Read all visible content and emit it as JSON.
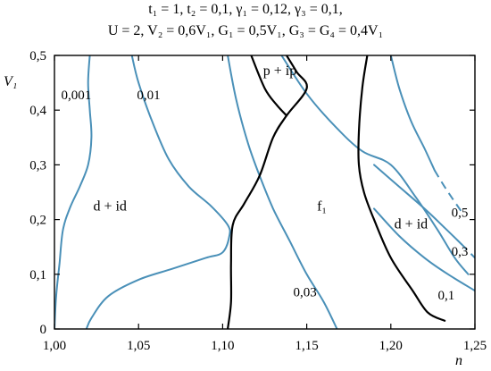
{
  "header": {
    "line1": "t₁ = 1, t₂ = 0,1,  γ₁ = 0,12,  γ₃ = 0,1,",
    "line2": "U = 2,  V₂ = 0,6V₁,  G₁ = 0,5V₁, G₃ = G₄ = 0,4V₁"
  },
  "chart_data": {
    "type": "line",
    "title": "",
    "xlabel": "n",
    "ylabel": "V₁",
    "xlim": [
      1.0,
      1.25
    ],
    "ylim": [
      0.0,
      0.5
    ],
    "x_ticks": [
      "1,00",
      "1,05",
      "1,10",
      "1,15",
      "1,20",
      "1,25"
    ],
    "y_ticks": [
      "0",
      "0,1",
      "0,2",
      "0,3",
      "0,4",
      "0,5"
    ],
    "x_tick_values": [
      1.0,
      1.05,
      1.1,
      1.15,
      1.2,
      1.25
    ],
    "y_tick_values": [
      0,
      0.1,
      0.2,
      0.3,
      0.4,
      0.5
    ],
    "grid": false,
    "colors": {
      "contour": "#4a90b8",
      "boundary": "#000000",
      "axis": "#000000"
    },
    "regions": [
      {
        "label": "d + id",
        "x": 1.033,
        "y": 0.225
      },
      {
        "label": "f₁",
        "x": 1.159,
        "y": 0.225
      },
      {
        "label": "d + id",
        "x": 1.212,
        "y": 0.192
      },
      {
        "label": "p + ip",
        "x": 1.134,
        "y": 0.472
      }
    ],
    "series": [
      {
        "name": "0,001",
        "color": "contour",
        "label_at": [
          1.004,
          0.428
        ],
        "points": [
          [
            1.021,
            0.5
          ],
          [
            1.02,
            0.45
          ],
          [
            1.021,
            0.4
          ],
          [
            1.022,
            0.35
          ],
          [
            1.02,
            0.3
          ],
          [
            1.015,
            0.26
          ],
          [
            1.009,
            0.22
          ],
          [
            1.005,
            0.18
          ],
          [
            1.003,
            0.12
          ],
          [
            1.001,
            0.06
          ],
          [
            1.0,
            0.0
          ]
        ]
      },
      {
        "name": "0,01",
        "color": "contour",
        "label_at": [
          1.049,
          0.428
        ],
        "points": [
          [
            1.046,
            0.5
          ],
          [
            1.05,
            0.45
          ],
          [
            1.058,
            0.38
          ],
          [
            1.068,
            0.31
          ],
          [
            1.08,
            0.26
          ],
          [
            1.093,
            0.225
          ],
          [
            1.103,
            0.19
          ],
          [
            1.104,
            0.17
          ],
          [
            1.1,
            0.14
          ],
          [
            1.09,
            0.13
          ],
          [
            1.07,
            0.11
          ],
          [
            1.05,
            0.09
          ],
          [
            1.032,
            0.06
          ],
          [
            1.022,
            0.02
          ],
          [
            1.019,
            0.0
          ]
        ]
      },
      {
        "name": "",
        "color": "contour",
        "points": [
          [
            1.103,
            0.5
          ],
          [
            1.108,
            0.42
          ],
          [
            1.115,
            0.34
          ],
          [
            1.122,
            0.28
          ],
          [
            1.13,
            0.22
          ],
          [
            1.14,
            0.16
          ],
          [
            1.15,
            0.1
          ],
          [
            1.16,
            0.05
          ],
          [
            1.168,
            0.0
          ]
        ]
      },
      {
        "name": "0,03",
        "color": "contour",
        "label_at": [
          1.142,
          0.068
        ],
        "points": [
          [
            1.135,
            0.5
          ],
          [
            1.15,
            0.43
          ],
          [
            1.167,
            0.37
          ],
          [
            1.183,
            0.325
          ],
          [
            1.2,
            0.3
          ],
          [
            1.215,
            0.24
          ],
          [
            1.228,
            0.18
          ],
          [
            1.238,
            0.13
          ],
          [
            1.246,
            0.1
          ]
        ]
      },
      {
        "name": "0,5",
        "color": "contour",
        "label_at": [
          1.236,
          0.213
        ],
        "dashed_from": 1.226,
        "points": [
          [
            1.2,
            0.5
          ],
          [
            1.205,
            0.44
          ],
          [
            1.212,
            0.38
          ],
          [
            1.22,
            0.33
          ],
          [
            1.226,
            0.29
          ],
          [
            1.233,
            0.255
          ],
          [
            1.243,
            0.21
          ]
        ]
      },
      {
        "name": "0,3",
        "color": "contour",
        "label_at": [
          1.236,
          0.142
        ],
        "dashed_from": 1.237,
        "points": [
          [
            1.19,
            0.3
          ],
          [
            1.205,
            0.26
          ],
          [
            1.22,
            0.22
          ],
          [
            1.232,
            0.185
          ],
          [
            1.242,
            0.155
          ],
          [
            1.25,
            0.13
          ]
        ]
      },
      {
        "name": "0,1",
        "color": "contour",
        "label_at": [
          1.228,
          0.062
        ],
        "points": [
          [
            1.19,
            0.22
          ],
          [
            1.205,
            0.17
          ],
          [
            1.22,
            0.13
          ],
          [
            1.234,
            0.1
          ],
          [
            1.25,
            0.07
          ]
        ]
      },
      {
        "name": "",
        "color": "boundary",
        "points": [
          [
            1.138,
            0.5
          ],
          [
            1.144,
            0.47
          ],
          [
            1.15,
            0.44
          ],
          [
            1.138,
            0.39
          ],
          [
            1.13,
            0.35
          ],
          [
            1.122,
            0.28
          ],
          [
            1.113,
            0.23
          ],
          [
            1.106,
            0.19
          ],
          [
            1.105,
            0.12
          ],
          [
            1.105,
            0.05
          ],
          [
            1.103,
            0.0
          ]
        ]
      },
      {
        "name": "",
        "color": "boundary",
        "points": [
          [
            1.117,
            0.5
          ],
          [
            1.125,
            0.44
          ],
          [
            1.132,
            0.41
          ],
          [
            1.138,
            0.39
          ]
        ]
      },
      {
        "name": "",
        "color": "boundary",
        "dashed_from": 1.225,
        "points": [
          [
            1.186,
            0.5
          ],
          [
            1.183,
            0.44
          ],
          [
            1.181,
            0.36
          ],
          [
            1.181,
            0.3
          ],
          [
            1.184,
            0.25
          ],
          [
            1.19,
            0.2
          ],
          [
            1.2,
            0.13
          ],
          [
            1.213,
            0.07
          ],
          [
            1.222,
            0.03
          ],
          [
            1.232,
            0.015
          ]
        ]
      }
    ]
  }
}
